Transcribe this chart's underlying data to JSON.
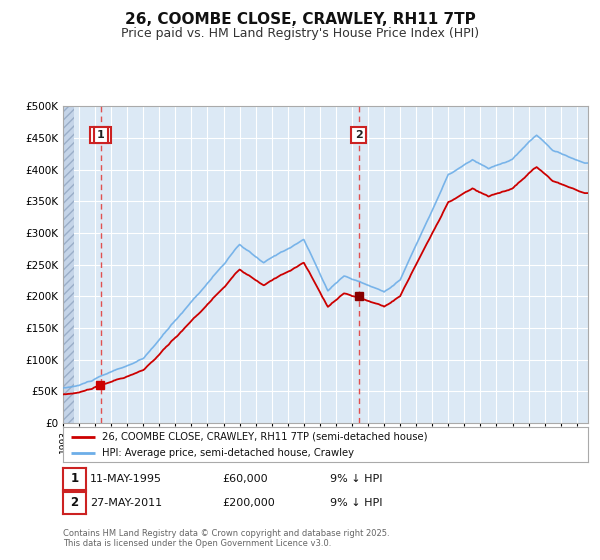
{
  "title": "26, COOMBE CLOSE, CRAWLEY, RH11 7TP",
  "subtitle": "Price paid vs. HM Land Registry's House Price Index (HPI)",
  "title_fontsize": 11,
  "subtitle_fontsize": 9,
  "x_start_year": 1993,
  "x_end_year": 2025,
  "y_min": 0,
  "y_max": 500000,
  "y_ticks": [
    0,
    50000,
    100000,
    150000,
    200000,
    250000,
    300000,
    350000,
    400000,
    450000,
    500000
  ],
  "y_tick_labels": [
    "£0",
    "£50K",
    "£100K",
    "£150K",
    "£200K",
    "£250K",
    "£300K",
    "£350K",
    "£400K",
    "£450K",
    "£500K"
  ],
  "hpi_color": "#6daee8",
  "price_color": "#cc0000",
  "vline_color": "#e05050",
  "bg_color": "#dce9f5",
  "grid_color": "#ffffff",
  "legend_label_price": "26, COOMBE CLOSE, CRAWLEY, RH11 7TP (semi-detached house)",
  "legend_label_hpi": "HPI: Average price, semi-detached house, Crawley",
  "sale1_date": "11-MAY-1995",
  "sale1_price": "£60,000",
  "sale1_note": "9% ↓ HPI",
  "sale2_date": "27-MAY-2011",
  "sale2_price": "£200,000",
  "sale2_note": "9% ↓ HPI",
  "footer": "Contains HM Land Registry data © Crown copyright and database right 2025.\nThis data is licensed under the Open Government Licence v3.0.",
  "sale1_year": 1995.36,
  "sale2_year": 2011.41,
  "sale1_value": 60000,
  "sale2_value": 200000
}
